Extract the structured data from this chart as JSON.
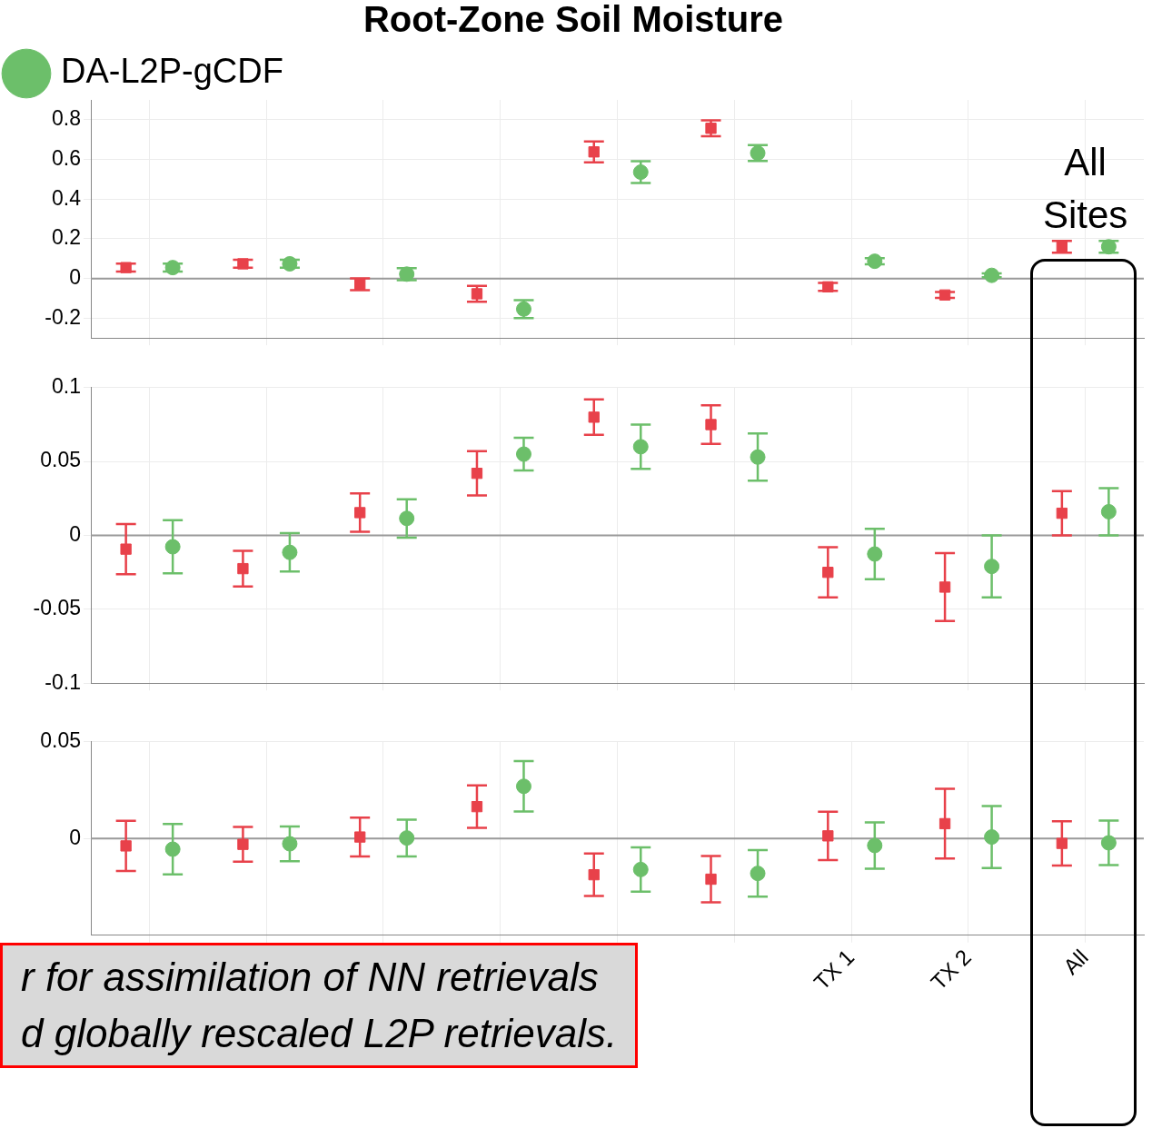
{
  "chart_data": [
    {
      "type": "scatter",
      "title": "Root-Zone Soil Moisture",
      "categories": [
        null,
        null,
        null,
        null,
        null,
        null,
        null,
        null,
        null
      ],
      "ylim": [
        -0.3,
        0.9
      ],
      "yticks": [
        -0.2,
        0,
        0.2,
        0.4,
        0.6,
        0.8
      ],
      "grid": true,
      "legend": "top left",
      "ref_lines": [
        {
          "axis": "y",
          "value": 0,
          "color": "#999999"
        }
      ],
      "annotations": [
        "All Sites"
      ],
      "series": [
        {
          "color": "#e8414a",
          "marker": "square",
          "values": [
            0.055,
            0.074,
            -0.029,
            -0.077,
            0.638,
            0.757,
            -0.042,
            -0.083,
            0.16
          ],
          "errors": [
            0.02,
            0.02,
            0.03,
            0.04,
            0.053,
            0.04,
            0.02,
            0.015,
            0.03
          ]
        },
        {
          "name": "DA-L2P-gCDF",
          "color": "#6cbf6a",
          "marker": "circle",
          "values": [
            0.055,
            0.074,
            0.022,
            -0.154,
            0.536,
            0.632,
            0.087,
            0.016,
            0.16
          ],
          "errors": [
            0.02,
            0.02,
            0.03,
            0.045,
            0.055,
            0.04,
            0.015,
            0.01,
            0.03
          ]
        }
      ]
    },
    {
      "type": "scatter",
      "categories": [
        null,
        null,
        null,
        null,
        null,
        null,
        null,
        null,
        null
      ],
      "ylim": [
        -0.1,
        0.1
      ],
      "yticks": [
        -0.1,
        -0.05,
        0,
        0.05,
        0.1
      ],
      "grid": true,
      "ref_lines": [
        {
          "axis": "y",
          "value": 0,
          "color": "#999999"
        }
      ],
      "series": [
        {
          "color": "#e8414a",
          "marker": "square",
          "values": [
            -0.0093,
            -0.0225,
            0.0154,
            0.042,
            0.08,
            0.075,
            -0.025,
            -0.035,
            0.015
          ],
          "errors": [
            0.017,
            0.012,
            0.013,
            0.015,
            0.012,
            0.013,
            0.017,
            0.023,
            0.015
          ]
        },
        {
          "color": "#6cbf6a",
          "marker": "circle",
          "values": [
            -0.0077,
            -0.0115,
            0.0115,
            0.055,
            0.06,
            0.053,
            -0.0126,
            -0.021,
            0.016
          ],
          "errors": [
            0.018,
            0.013,
            0.013,
            0.011,
            0.015,
            0.016,
            0.017,
            0.021,
            0.016
          ]
        }
      ]
    },
    {
      "type": "scatter",
      "categories": [
        null,
        null,
        null,
        null,
        null,
        null,
        "TX 1",
        "TX 2",
        "All"
      ],
      "ylim": [
        -0.05,
        0.05
      ],
      "yticks": [
        0,
        0.05
      ],
      "grid": true,
      "ref_lines": [
        {
          "axis": "y",
          "value": 0,
          "color": "#999999"
        }
      ],
      "annotations": [
        "r for assimilation of NN retrievals",
        "d globally rescaled L2P retrievals."
      ],
      "series": [
        {
          "color": "#e8414a",
          "marker": "square",
          "values": [
            -0.0038,
            -0.003,
            0.0008,
            0.0165,
            -0.0187,
            -0.021,
            0.0014,
            0.0077,
            -0.0025
          ],
          "errors": [
            0.013,
            0.009,
            0.01,
            0.011,
            0.011,
            0.012,
            0.0125,
            0.018,
            0.0115
          ]
        },
        {
          "color": "#6cbf6a",
          "marker": "circle",
          "values": [
            -0.0055,
            -0.0027,
            0.0003,
            0.027,
            -0.016,
            -0.018,
            -0.0036,
            0.0008,
            -0.0022
          ],
          "errors": [
            0.013,
            0.009,
            0.0095,
            0.013,
            0.0115,
            0.012,
            0.012,
            0.016,
            0.0115
          ]
        }
      ]
    }
  ]
}
